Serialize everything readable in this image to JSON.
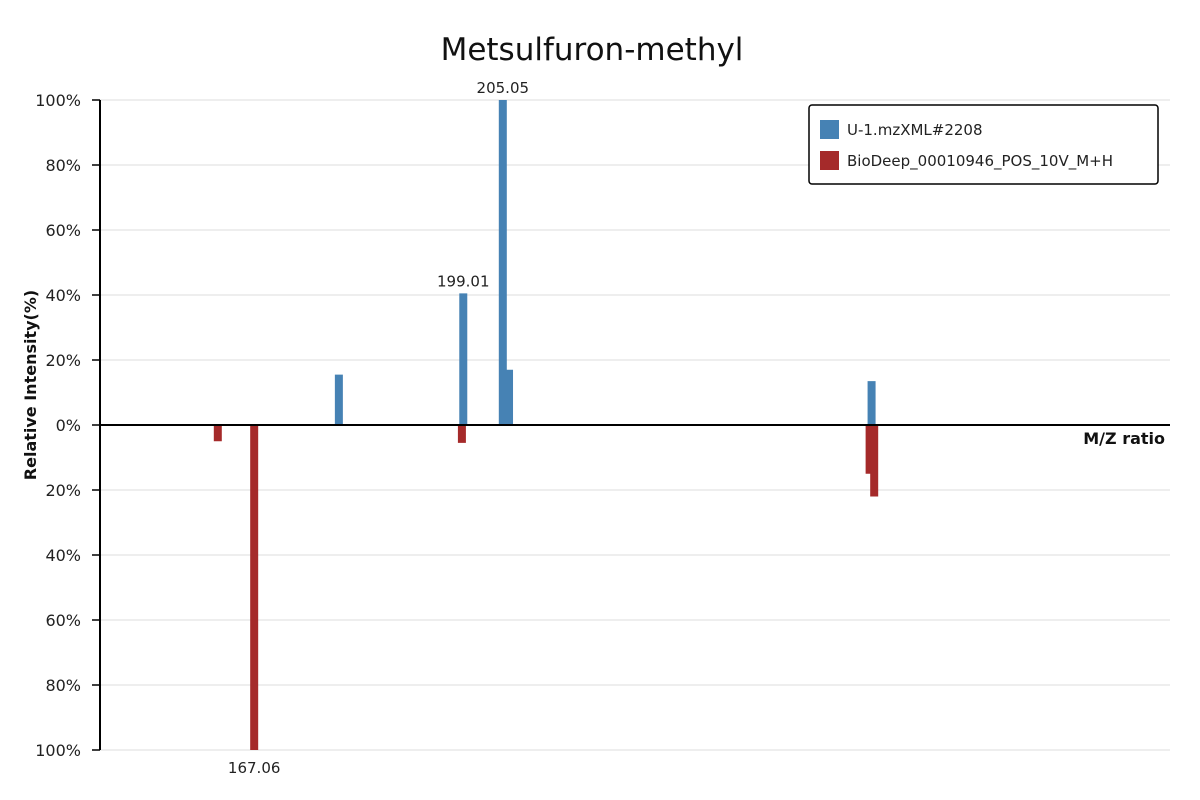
{
  "chart_data": {
    "type": "bar",
    "title": "Metsulfuron-methyl",
    "xlabel": "M/Z ratio",
    "ylabel": "Relative Intensity(%)",
    "ylim": [
      -100,
      100
    ],
    "yticks": [
      {
        "value": 100,
        "label": "100%"
      },
      {
        "value": 80,
        "label": "80%"
      },
      {
        "value": 60,
        "label": "60%"
      },
      {
        "value": 40,
        "label": "40%"
      },
      {
        "value": 20,
        "label": "20%"
      },
      {
        "value": 0,
        "label": "0%"
      },
      {
        "value": -20,
        "label": "20%"
      },
      {
        "value": -40,
        "label": "40%"
      },
      {
        "value": -60,
        "label": "60%"
      },
      {
        "value": -80,
        "label": "80%"
      },
      {
        "value": -100,
        "label": "100%"
      }
    ],
    "xlim": [
      143.5,
      307
    ],
    "grid": true,
    "legend_position": "top-right",
    "series": [
      {
        "name": "U-1.mzXML#2208",
        "color": "#4682b4",
        "direction": "up",
        "peaks": [
          {
            "mz": 180.0,
            "intensity": 15.5
          },
          {
            "mz": 199.01,
            "intensity": 40.5,
            "label": "199.01"
          },
          {
            "mz": 205.05,
            "intensity": 100,
            "label": "205.05"
          },
          {
            "mz": 206.0,
            "intensity": 17
          },
          {
            "mz": 261.4,
            "intensity": 13.5
          }
        ]
      },
      {
        "name": "BioDeep_00010946_POS_10V_M+H",
        "color": "#a52a2a",
        "direction": "down",
        "peaks": [
          {
            "mz": 161.5,
            "intensity": 5
          },
          {
            "mz": 167.06,
            "intensity": 100,
            "label": "167.06"
          },
          {
            "mz": 198.8,
            "intensity": 5.5
          },
          {
            "mz": 261.1,
            "intensity": 15
          },
          {
            "mz": 261.8,
            "intensity": 22
          }
        ]
      }
    ]
  }
}
